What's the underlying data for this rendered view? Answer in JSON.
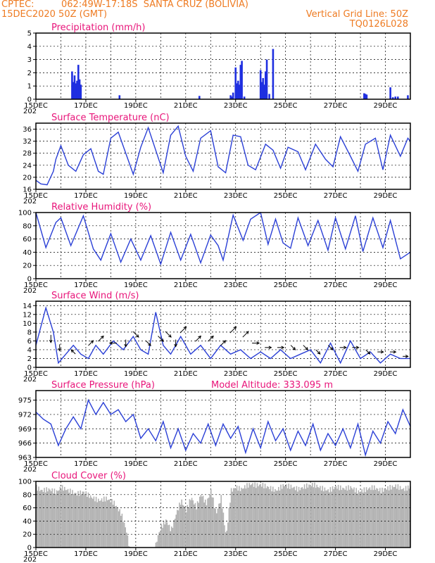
{
  "header": {
    "source": "CPTEC:",
    "location": "062:49W-17:18S  SANTA CRUZ (BOLIVIA)",
    "init_time": "15DEC2020 50Z (GMT)",
    "grid_note": "Vertical Grid Line: 50Z",
    "model_id": "TQ0126L028"
  },
  "x_ticks": [
    "15DEC",
    "17DEC",
    "19DEC",
    "21DEC",
    "23DEC",
    "25DEC",
    "27DEC",
    "29DEC"
  ],
  "x_tick_days": [
    15,
    17,
    19,
    21,
    23,
    25,
    27,
    29
  ],
  "x_range": [
    15.0,
    30.0
  ],
  "year_stub": "202",
  "pressure_extra": "Model Altitude: 333.095 m",
  "colors": {
    "header": "#ee7b22",
    "panel_title": "#e8157a",
    "series_line": "#2a3fd6",
    "precip_bar": "#1f2fe0",
    "cloud_bar": "#b3b3b3",
    "wind_arrow": "#000000"
  },
  "chart_data": [
    {
      "id": "precipitation",
      "type": "bar",
      "title": "Precipitation (mm/h)",
      "yticks": [
        0,
        1,
        2,
        3,
        4,
        5
      ],
      "ylim": [
        0,
        5
      ],
      "grid": true,
      "x": [
        16.45,
        16.5,
        16.55,
        16.6,
        16.65,
        16.7,
        16.75,
        16.8,
        18.35,
        21.55,
        22.8,
        22.85,
        22.9,
        23.0,
        23.05,
        23.1,
        23.15,
        23.2,
        23.25,
        23.35,
        24.0,
        24.05,
        24.1,
        24.15,
        24.2,
        24.25,
        24.35,
        24.5,
        28.15,
        28.2,
        28.25,
        29.2,
        29.3,
        29.4,
        29.5,
        29.9
      ],
      "values": [
        2.1,
        1.3,
        1.8,
        1.2,
        1.4,
        2.6,
        1.5,
        1.1,
        0.3,
        0.25,
        0.3,
        0.2,
        0.5,
        2.4,
        1.2,
        1.4,
        1.1,
        2.6,
        2.9,
        0.2,
        2.2,
        1.3,
        1.6,
        1.1,
        2.1,
        3.0,
        0.4,
        3.8,
        0.45,
        0.4,
        0.35,
        0.9,
        0.15,
        0.2,
        0.2,
        0.3
      ]
    },
    {
      "id": "temperature",
      "type": "line",
      "title": "Surface Temperature (nC)",
      "yticks": [
        16,
        20,
        24,
        28,
        32,
        36
      ],
      "ylim": [
        16,
        38
      ],
      "grid": true,
      "x": [
        15.0,
        15.2,
        15.45,
        15.7,
        15.8,
        16.0,
        16.3,
        16.6,
        16.9,
        17.2,
        17.5,
        17.7,
        18.0,
        18.3,
        18.6,
        18.9,
        19.2,
        19.5,
        19.8,
        20.1,
        20.4,
        20.7,
        21.0,
        21.3,
        21.6,
        22.0,
        22.3,
        22.6,
        22.9,
        23.2,
        23.5,
        23.8,
        24.2,
        24.5,
        24.8,
        25.1,
        25.5,
        25.8,
        26.2,
        26.6,
        26.9,
        27.2,
        27.6,
        27.9,
        28.2,
        28.6,
        28.9,
        29.2,
        29.6,
        29.9,
        30.0
      ],
      "values": [
        19,
        17.8,
        17.5,
        22,
        26,
        30.5,
        24,
        22,
        27.5,
        29.5,
        22,
        21,
        33,
        35,
        28,
        21,
        30,
        36.5,
        29,
        21.5,
        34,
        37,
        27,
        22,
        33,
        35.5,
        23.5,
        21.5,
        34,
        33.5,
        24,
        22.5,
        31,
        29,
        23,
        30,
        28.5,
        22.5,
        31,
        26,
        23.5,
        33.5,
        27,
        22,
        31,
        33,
        22.5,
        34,
        27,
        33,
        32
      ]
    },
    {
      "id": "humidity",
      "type": "line",
      "title": "Relative Humidity (%)",
      "yticks": [
        0,
        20,
        40,
        60,
        80,
        100
      ],
      "ylim": [
        0,
        100
      ],
      "grid": true,
      "x": [
        15.0,
        15.4,
        15.8,
        16.0,
        16.4,
        16.9,
        17.3,
        17.6,
        18.0,
        18.4,
        18.8,
        19.2,
        19.6,
        20.0,
        20.4,
        20.8,
        21.2,
        21.6,
        22.0,
        22.3,
        22.5,
        22.9,
        23.3,
        23.6,
        24.0,
        24.3,
        24.6,
        24.9,
        25.2,
        25.5,
        25.9,
        26.3,
        26.7,
        27.0,
        27.4,
        27.8,
        28.1,
        28.5,
        28.9,
        29.2,
        29.6,
        30.0
      ],
      "values": [
        100,
        47,
        85,
        92,
        50,
        95,
        45,
        28,
        68,
        25,
        60,
        28,
        65,
        22,
        70,
        28,
        67,
        24,
        66,
        50,
        28,
        96,
        58,
        90,
        100,
        52,
        90,
        54,
        46,
        92,
        50,
        88,
        43,
        92,
        45,
        95,
        41,
        92,
        47,
        88,
        30,
        40
      ]
    },
    {
      "id": "wind",
      "type": "line",
      "title": "Surface Wind (m/s)",
      "yticks": [
        0,
        2,
        4,
        6,
        8,
        10,
        12,
        14
      ],
      "ylim": [
        0,
        15
      ],
      "grid": true,
      "x": [
        15.0,
        15.4,
        15.7,
        15.9,
        16.2,
        16.5,
        16.8,
        17.1,
        17.4,
        17.7,
        18.1,
        18.5,
        18.9,
        19.2,
        19.5,
        19.8,
        20.1,
        20.4,
        20.8,
        21.2,
        21.6,
        22.0,
        22.4,
        22.8,
        23.2,
        23.6,
        24.0,
        24.4,
        24.8,
        25.2,
        25.6,
        26.0,
        26.4,
        26.8,
        27.2,
        27.6,
        28.0,
        28.4,
        28.8,
        29.2,
        29.6,
        30.0
      ],
      "values": [
        5,
        13.5,
        8,
        1,
        3,
        5,
        3,
        2,
        5,
        3,
        6,
        4,
        7,
        4,
        3,
        12.5,
        5,
        3,
        7,
        3,
        5,
        2,
        5,
        3,
        4,
        2,
        3.5,
        2,
        4,
        2,
        3,
        4,
        1,
        5.5,
        1,
        6,
        2,
        3.5,
        1,
        3,
        2,
        2
      ],
      "arrows": {
        "x": [
          15.6,
          15.95,
          16.5,
          17.2,
          17.6,
          18.1,
          18.6,
          19.0,
          19.5,
          20.0,
          20.3,
          20.6,
          20.9,
          21.5,
          22.0,
          22.5,
          22.9,
          23.4,
          23.8,
          24.3,
          24.8,
          25.3,
          25.8,
          26.3,
          26.8,
          27.3,
          27.8,
          28.3,
          28.8,
          29.3,
          29.8
        ],
        "speed": [
          6,
          4,
          3,
          5,
          6,
          5,
          5,
          7,
          5,
          6,
          7,
          5,
          8,
          6,
          6,
          5,
          8,
          7,
          5,
          4,
          4,
          4,
          4,
          3,
          4,
          4,
          4,
          3,
          3,
          3,
          2
        ],
        "direction": [
          "S",
          "S",
          "NW",
          "NE",
          "NE",
          "W",
          "S",
          "SE",
          "SE",
          "SE",
          "SE",
          "S",
          "NE",
          "NE",
          "NE",
          "NE",
          "NE",
          "NE",
          "E",
          "E",
          "E",
          "SE",
          "SE",
          "SE",
          "SE",
          "E",
          "E",
          "SE",
          "E",
          "E",
          "E"
        ]
      }
    },
    {
      "id": "pressure",
      "type": "line",
      "title": "Surface Pressure (hPa)",
      "yticks": [
        963,
        966,
        969,
        972,
        975
      ],
      "ylim": [
        963,
        977
      ],
      "grid": true,
      "x": [
        15.0,
        15.3,
        15.6,
        15.9,
        16.2,
        16.5,
        16.8,
        17.1,
        17.4,
        17.7,
        18.0,
        18.3,
        18.6,
        18.9,
        19.2,
        19.5,
        19.8,
        20.1,
        20.4,
        20.7,
        21.0,
        21.3,
        21.6,
        21.9,
        22.2,
        22.5,
        22.8,
        23.1,
        23.4,
        23.7,
        24.0,
        24.3,
        24.6,
        24.9,
        25.2,
        25.5,
        25.8,
        26.1,
        26.4,
        26.7,
        27.0,
        27.3,
        27.6,
        27.9,
        28.2,
        28.5,
        28.8,
        29.1,
        29.4,
        29.7,
        30.0
      ],
      "values": [
        972.5,
        971,
        970,
        965.5,
        969,
        971.5,
        969,
        975,
        972,
        974.5,
        972,
        973,
        970.5,
        972,
        967,
        969,
        966.5,
        970.5,
        965,
        969,
        964.5,
        968,
        966,
        970,
        965.5,
        970,
        967,
        969.5,
        964,
        969,
        965,
        970.5,
        966.5,
        969,
        964.5,
        968.5,
        965.5,
        970,
        964.5,
        968,
        965.5,
        969,
        965,
        970,
        963.5,
        968.5,
        966,
        970.5,
        968,
        973,
        969.5
      ]
    },
    {
      "id": "cloud",
      "type": "area",
      "title": "Cloud Cover (%)",
      "yticks": [
        0,
        20,
        40,
        60,
        80,
        100
      ],
      "ylim": [
        0,
        100
      ],
      "grid": true,
      "x": [
        15.0,
        15.2,
        15.5,
        15.8,
        16.0,
        16.3,
        16.6,
        16.9,
        17.2,
        17.5,
        17.8,
        18.1,
        18.4,
        18.6,
        18.75,
        18.9,
        19.0,
        19.2,
        19.4,
        19.6,
        19.75,
        19.8,
        19.9,
        20.0,
        20.2,
        20.4,
        20.6,
        20.8,
        21.0,
        21.2,
        21.4,
        21.6,
        21.8,
        22.0,
        22.2,
        22.4,
        22.6,
        22.8,
        23.0,
        23.2,
        23.4,
        23.6,
        23.8,
        24.0,
        24.3,
        24.6,
        24.9,
        25.2,
        25.5,
        25.8,
        26.1,
        26.4,
        26.7,
        27.0,
        27.3,
        27.6,
        27.9,
        28.2,
        28.5,
        28.8,
        29.1,
        29.4,
        29.7,
        30.0
      ],
      "values": [
        95,
        90,
        92,
        88,
        95,
        90,
        85,
        88,
        80,
        75,
        78,
        72,
        55,
        30,
        0,
        0,
        0,
        0,
        0,
        0,
        0,
        12,
        25,
        35,
        45,
        30,
        55,
        75,
        60,
        80,
        65,
        85,
        70,
        90,
        55,
        80,
        20,
        90,
        95,
        92,
        97,
        100,
        98,
        99,
        95,
        90,
        98,
        96,
        92,
        97,
        99,
        94,
        90,
        96,
        93,
        95,
        88,
        92,
        95,
        90,
        94,
        97,
        92,
        96
      ]
    }
  ]
}
